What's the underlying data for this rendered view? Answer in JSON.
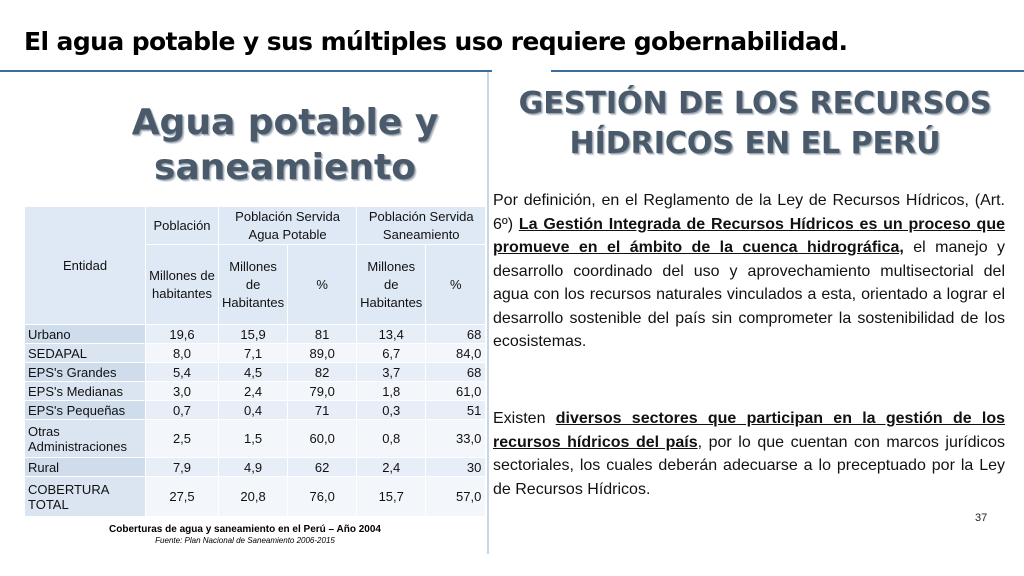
{
  "slide": {
    "title": "El agua potable y sus múltiples uso requiere gobernabilidad.",
    "page_number": "37"
  },
  "left_panel": {
    "heading_line1": "Agua potable y",
    "heading_line2": "saneamiento",
    "table": {
      "headers": {
        "entidad": "Entidad",
        "poblacion": "Población",
        "servida_agua": "Población Servida Agua Potable",
        "servida_saneamiento": "Población Servida Saneamiento"
      },
      "subheaders": {
        "poblacion_unit": "Millones de habitantes",
        "agua_unit": "Millones de Habitantes",
        "agua_pct": "%",
        "san_unit": "Millones de Habitantes",
        "san_pct": "%"
      },
      "rows": [
        {
          "entidad": "Urbano",
          "poblacion": "19,6",
          "agua_mill": "15,9",
          "agua_pct": "81",
          "san_mill": "13,4",
          "san_pct": "68"
        },
        {
          "entidad": "SEDAPAL",
          "poblacion": "8,0",
          "agua_mill": "7,1",
          "agua_pct": "89,0",
          "san_mill": "6,7",
          "san_pct": "84,0"
        },
        {
          "entidad": "EPS's Grandes",
          "poblacion": "5,4",
          "agua_mill": "4,5",
          "agua_pct": "82",
          "san_mill": "3,7",
          "san_pct": "68"
        },
        {
          "entidad": "EPS's Medianas",
          "poblacion": "3,0",
          "agua_mill": "2,4",
          "agua_pct": "79,0",
          "san_mill": "1,8",
          "san_pct": "61,0"
        },
        {
          "entidad": "EPS's Pequeñas",
          "poblacion": "0,7",
          "agua_mill": "0,4",
          "agua_pct": "71",
          "san_mill": "0,3",
          "san_pct": "51"
        },
        {
          "entidad": "Otras Administraciones",
          "poblacion": "2,5",
          "agua_mill": "1,5",
          "agua_pct": "60,0",
          "san_mill": "0,8",
          "san_pct": "33,0"
        },
        {
          "entidad": "Rural",
          "poblacion": "7,9",
          "agua_mill": "4,9",
          "agua_pct": "62",
          "san_mill": "2,4",
          "san_pct": "30"
        },
        {
          "entidad": "COBERTURA TOTAL",
          "poblacion": "27,5",
          "agua_mill": "20,8",
          "agua_pct": "76,0",
          "san_mill": "15,7",
          "san_pct": "57,0"
        }
      ]
    },
    "caption": "Coberturas de agua y saneamiento en el Perú – Año 2004",
    "source": "Fuente: Plan Nacional de Saneamiento 2006-2015"
  },
  "right_panel": {
    "heading_line1": "GESTIÓN DE LOS RECURSOS",
    "heading_line2": "HÍDRICOS EN EL PERÚ",
    "p1_start": "Por definición,  en el Reglamento de la Ley de Recursos Hídricos, (Art. 6º) ",
    "p1_bold": "La Gestión Integrada de Recursos Hídricos es un proceso que promueve en el ámbito de la cuenca hidrográfica,",
    "p1_end": " el manejo y desarrollo coordinado del uso y aprovechamiento multisectorial del agua con los recursos naturales vinculados a esta, orientado a lograr el desarrollo sostenible del país sin comprometer la sostenibilidad de los ecosistemas.",
    "p2_start": "Existen ",
    "p2_bold": "diversos sectores que participan en la gestión de los recursos hídricos del país",
    "p2_end": ", por lo que cuentan con marcos jurídicos sectoriales, los cuales deberán adecuarse a lo preceptuado por la Ley de Recursos Hídricos."
  }
}
